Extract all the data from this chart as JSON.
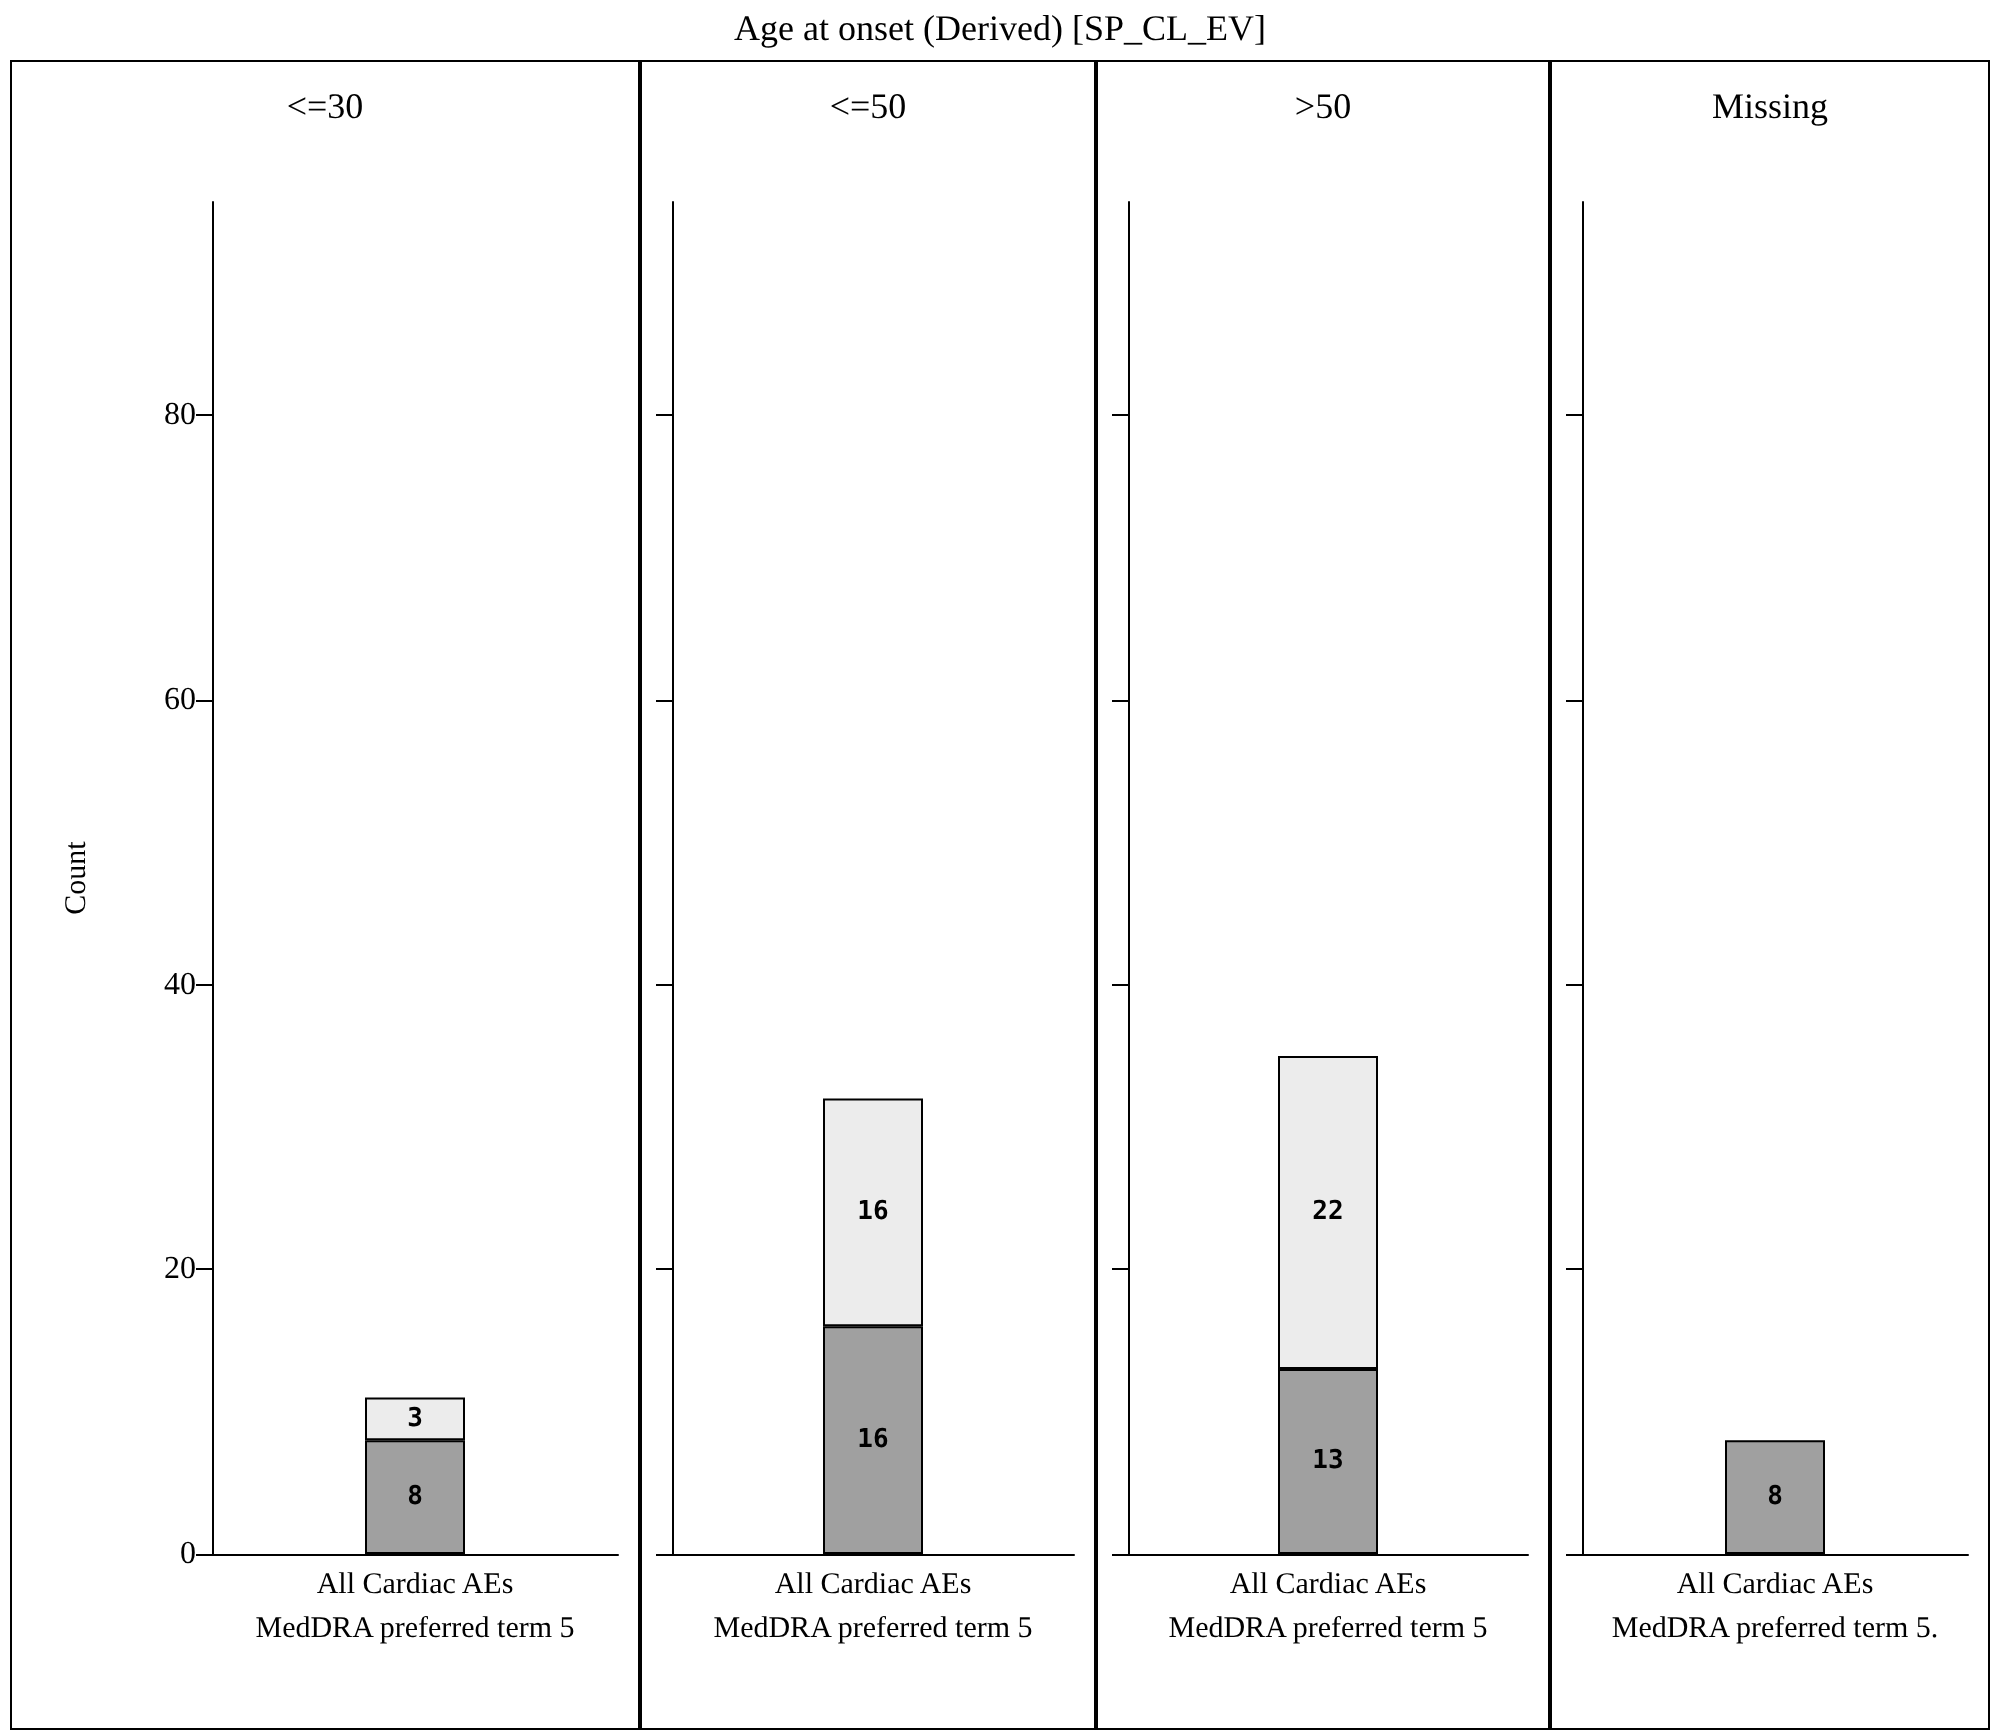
{
  "chart_data": [
    {
      "type": "bar",
      "title": "<=30",
      "ylabel": "Count",
      "xlabel": "MedDRA preferred term 5",
      "annotations": [
        "Age at onset (Derived) [SP_CL_EV]"
      ],
      "categories": [
        "All Cardiac AEs"
      ],
      "stacked": true,
      "data_labels": true,
      "ylim": [
        0,
        95
      ],
      "yticks": [
        0,
        20,
        40,
        60,
        80
      ],
      "series": [
        {
          "color": "#a0a0a0",
          "values": [
            8
          ]
        },
        {
          "color": "#ececec",
          "values": [
            3
          ]
        }
      ]
    },
    {
      "type": "bar",
      "title": "<=50",
      "xlabel": "MedDRA preferred term 5",
      "categories": [
        "All Cardiac AEs"
      ],
      "stacked": true,
      "data_labels": true,
      "ylim": [
        0,
        95
      ],
      "yticks": [
        0,
        20,
        40,
        60,
        80
      ],
      "tick_labels": "x",
      "series": [
        {
          "color": "#a0a0a0",
          "values": [
            16
          ]
        },
        {
          "color": "#ececec",
          "values": [
            16
          ]
        }
      ]
    },
    {
      "type": "bar",
      "title": ">50",
      "xlabel": "MedDRA preferred term 5",
      "categories": [
        "All Cardiac AEs"
      ],
      "stacked": true,
      "data_labels": true,
      "ylim": [
        0,
        95
      ],
      "yticks": [
        0,
        20,
        40,
        60,
        80
      ],
      "tick_labels": "x",
      "series": [
        {
          "color": "#a0a0a0",
          "values": [
            13
          ]
        },
        {
          "color": "#ececec",
          "values": [
            22
          ]
        }
      ]
    },
    {
      "type": "bar",
      "title": "Missing",
      "xlabel": "MedDRA preferred term 5.",
      "categories": [
        "All Cardiac AEs"
      ],
      "stacked": true,
      "data_labels": true,
      "ylim": [
        0,
        95
      ],
      "yticks": [
        0,
        20,
        40,
        60,
        80
      ],
      "tick_labels": "x",
      "series": [
        {
          "color": "#a0a0a0",
          "values": [
            8
          ]
        },
        {
          "color": "#ececec",
          "values": [
            null
          ]
        }
      ]
    }
  ]
}
